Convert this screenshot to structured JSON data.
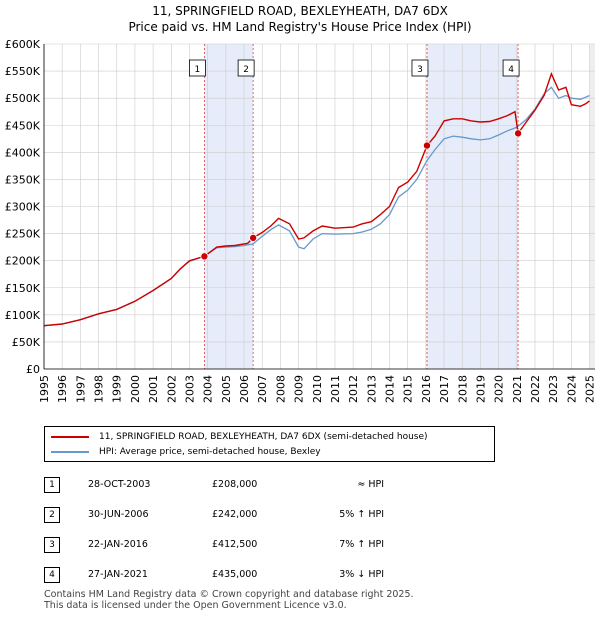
{
  "header": {
    "title_line1": "11, SPRINGFIELD ROAD, BEXLEYHEATH, DA7 6DX",
    "title_line2": "Price paid vs. HM Land Registry's House Price Index (HPI)"
  },
  "colors": {
    "property": "#cc0000",
    "hpi": "#6699cc",
    "shade": "#dde6f7",
    "marker_line": "#dd4444"
  },
  "legend": {
    "property_label": "11, SPRINGFIELD ROAD, BEXLEYHEATH, DA7 6DX (semi-detached house)",
    "hpi_label": "HPI: Average price, semi-detached house, Bexley"
  },
  "sales": [
    {
      "num": "1",
      "date": "28-OCT-2003",
      "price": "£208,000",
      "hpi": "≈ HPI"
    },
    {
      "num": "2",
      "date": "30-JUN-2006",
      "price": "£242,000",
      "hpi": "5% ↑ HPI"
    },
    {
      "num": "3",
      "date": "22-JAN-2016",
      "price": "£412,500",
      "hpi": "7% ↑ HPI"
    },
    {
      "num": "4",
      "date": "27-JAN-2021",
      "price": "£435,000",
      "hpi": "3% ↓ HPI"
    }
  ],
  "footer": {
    "line1": "Contains HM Land Registry data © Crown copyright and database right 2025.",
    "line2": "This data is licensed under the Open Government Licence v3.0."
  },
  "chart_data": {
    "type": "line",
    "xlim": [
      1995,
      2025.3
    ],
    "ylim": [
      0,
      600000
    ],
    "x_ticks": [
      1995,
      1996,
      1997,
      1998,
      1999,
      2000,
      2001,
      2002,
      2003,
      2004,
      2005,
      2006,
      2007,
      2008,
      2009,
      2010,
      2011,
      2012,
      2013,
      2014,
      2015,
      2016,
      2017,
      2018,
      2019,
      2020,
      2021,
      2022,
      2023,
      2024,
      2025
    ],
    "y_ticks": [
      0,
      50000,
      100000,
      150000,
      200000,
      250000,
      300000,
      350000,
      400000,
      450000,
      500000,
      550000,
      600000
    ],
    "y_tick_labels": [
      "£0",
      "£50K",
      "£100K",
      "£150K",
      "£200K",
      "£250K",
      "£300K",
      "£350K",
      "£400K",
      "£450K",
      "£500K",
      "£550K",
      "£600K"
    ],
    "shaded_spans": [
      [
        2003.82,
        2006.5
      ],
      [
        2016.06,
        2021.07
      ]
    ],
    "sale_points": [
      {
        "label": "1",
        "x": 2003.82,
        "y": 208000
      },
      {
        "label": "2",
        "x": 2006.5,
        "y": 242000
      },
      {
        "label": "3",
        "x": 2016.06,
        "y": 412500
      },
      {
        "label": "4",
        "x": 2021.07,
        "y": 435000
      }
    ],
    "series": [
      {
        "name": "11, SPRINGFIELD ROAD, BEXLEYHEATH, DA7 6DX (semi-detached house)",
        "x": [
          1995,
          1996,
          1997,
          1998,
          1999,
          2000,
          2001,
          2002,
          2002.5,
          2003,
          2003.82,
          2004.5,
          2005,
          2005.5,
          2006.2,
          2006.5,
          2007,
          2007.5,
          2007.9,
          2008.5,
          2009,
          2009.3,
          2009.8,
          2010.3,
          2011,
          2012,
          2012.5,
          2013,
          2013.5,
          2014,
          2014.5,
          2015,
          2015.5,
          2016.06,
          2016.5,
          2017,
          2017.5,
          2018,
          2018.5,
          2019,
          2019.5,
          2020,
          2020.5,
          2020.9,
          2021.07,
          2021.5,
          2022,
          2022.5,
          2022.9,
          2023.3,
          2023.7,
          2024,
          2024.5,
          2024.8,
          2025
        ],
        "y": [
          80000,
          83000,
          91000,
          102000,
          110000,
          125000,
          145000,
          167000,
          185000,
          200000,
          208000,
          225000,
          227000,
          228000,
          232000,
          242000,
          252000,
          265000,
          278000,
          268000,
          240000,
          242000,
          255000,
          264000,
          260000,
          262000,
          268000,
          272000,
          285000,
          300000,
          335000,
          345000,
          365000,
          412500,
          430000,
          458000,
          462000,
          462000,
          458000,
          456000,
          457000,
          462000,
          468000,
          475000,
          435000,
          455000,
          478000,
          505000,
          545000,
          515000,
          520000,
          488000,
          485000,
          490000,
          495000
        ]
      },
      {
        "name": "HPI: Average price, semi-detached house, Bexley",
        "x": [
          1995,
          1996,
          1997,
          1998,
          1999,
          2000,
          2001,
          2002,
          2002.5,
          2003,
          2003.82,
          2004.5,
          2005,
          2005.5,
          2006,
          2006.5,
          2007,
          2007.5,
          2007.9,
          2008.5,
          2009,
          2009.3,
          2009.8,
          2010.3,
          2011,
          2012,
          2012.5,
          2013,
          2013.5,
          2014,
          2014.5,
          2015,
          2015.5,
          2016.06,
          2016.5,
          2017,
          2017.5,
          2018,
          2018.5,
          2019,
          2019.5,
          2020,
          2020.5,
          2020.9,
          2021.07,
          2021.5,
          2022,
          2022.5,
          2022.9,
          2023.3,
          2023.7,
          2024,
          2024.5,
          2024.8,
          2025
        ],
        "y": [
          80000,
          83000,
          91000,
          102000,
          110000,
          125000,
          145000,
          167000,
          185000,
          199000,
          208000,
          224000,
          225000,
          226000,
          228000,
          231000,
          245000,
          258000,
          266000,
          255000,
          225000,
          222000,
          240000,
          250000,
          249000,
          250000,
          253000,
          258000,
          268000,
          285000,
          318000,
          330000,
          350000,
          385000,
          405000,
          425000,
          430000,
          428000,
          425000,
          423000,
          425000,
          432000,
          440000,
          445000,
          448000,
          460000,
          480000,
          508000,
          520000,
          500000,
          505000,
          500000,
          498000,
          502000,
          505000
        ]
      }
    ]
  }
}
